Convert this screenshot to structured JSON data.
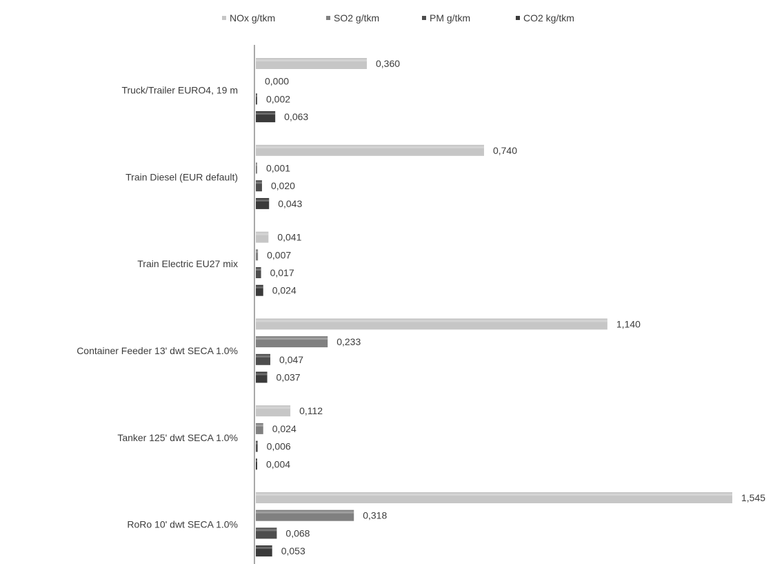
{
  "chart_data": {
    "type": "bar",
    "orientation": "horizontal",
    "categories": [
      "Truck/Trailer EURO4, 19 m",
      "Train Diesel (EUR default)",
      "Train Electric EU27 mix",
      "Container Feeder 13' dwt SECA 1.0%",
      "Tanker 125' dwt SECA 1.0%",
      "RoRo 10' dwt SECA 1.0%"
    ],
    "series": [
      {
        "name": "NOx g/tkm",
        "color": "#c6c6c6",
        "values": [
          0.36,
          0.74,
          0.041,
          1.14,
          0.112,
          1.545
        ],
        "labels": [
          "0,360",
          "0,740",
          "0,041",
          "1,140",
          "0,112",
          "1,545"
        ]
      },
      {
        "name": "SO2 g/tkm",
        "color": "#808080",
        "values": [
          0.0,
          0.001,
          0.007,
          0.233,
          0.024,
          0.318
        ],
        "labels": [
          "0,000",
          "0,001",
          "0,007",
          "0,233",
          "0,024",
          "0,318"
        ]
      },
      {
        "name": "PM g/tkm",
        "color": "#4d4d4d",
        "values": [
          0.002,
          0.02,
          0.017,
          0.047,
          0.006,
          0.068
        ],
        "labels": [
          "0,002",
          "0,020",
          "0,017",
          "0,047",
          "0,006",
          "0,068"
        ]
      },
      {
        "name": "CO2 kg/tkm",
        "color": "#3a3a3a",
        "values": [
          0.063,
          0.043,
          0.024,
          0.037,
          0.004,
          0.053
        ],
        "labels": [
          "0,063",
          "0,043",
          "0,024",
          "0,037",
          "0,004",
          "0,053"
        ]
      }
    ],
    "title": "",
    "xlabel": "",
    "ylabel": "",
    "xlim": [
      0,
      1.545
    ],
    "grid": false,
    "legend_position": "top"
  }
}
